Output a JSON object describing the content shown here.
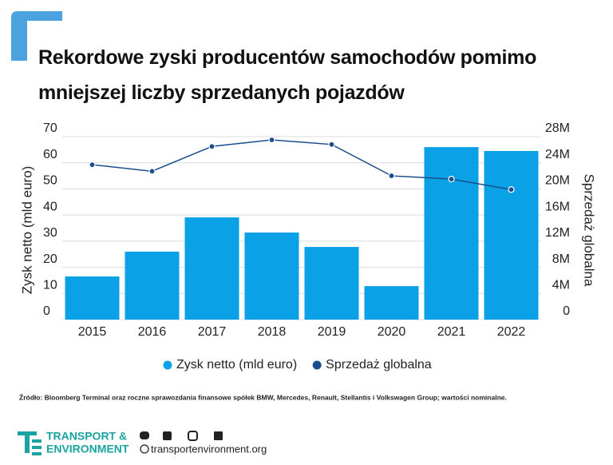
{
  "chart_data": {
    "type": "bar",
    "title": "Rekordowe zyski producentów samochodów pomimo mniejszej liczby sprzedanych pojazdów",
    "y_label": "Zysk netto (mld euro)",
    "y2_label": "Sprzedaż globalna",
    "categories": [
      "2015",
      "2016",
      "2017",
      "2018",
      "2019",
      "2020",
      "2021",
      "2022"
    ],
    "series": [
      {
        "name": "Zysk netto (mld euro)",
        "type": "bar",
        "color": "#0ba1e6",
        "values": [
          16.5,
          26,
          39.1,
          33.3,
          27.8,
          12.8,
          66,
          64.5
        ]
      },
      {
        "name": "Sprzedaż globalna",
        "type": "line",
        "axis": "y2",
        "color": "#1b4d8c",
        "values": [
          23700000,
          22700000,
          26500000,
          27500000,
          26800000,
          22000000,
          21500000,
          19900000
        ]
      }
    ],
    "ylim": [
      0,
      70
    ],
    "yticks": [
      0,
      10,
      20,
      30,
      40,
      50,
      60,
      70
    ],
    "y2lim": [
      0,
      28000000
    ],
    "y2ticks": [
      0,
      {
        "value": 4000000,
        "label": "4M"
      },
      {
        "value": 8000000,
        "label": "8M"
      },
      {
        "value": 12000000,
        "label": "12M"
      },
      {
        "value": 16000000,
        "label": "16M"
      },
      {
        "value": 20000000,
        "label": "20M"
      },
      {
        "value": 24000000,
        "label": "24M"
      },
      {
        "value": 28000000,
        "label": "28M"
      }
    ],
    "grid": true,
    "legend": "bottom",
    "source": "Źródło: Bloomberg Terminal oraz roczne sprawozdania finansowe spółek BMW, Mercedes, Renault, Stellantis i Volkswagen Group; wartości nominalne."
  },
  "footer": {
    "brand_line1": "TRANSPORT &",
    "brand_line2": "ENVIRONMENT",
    "url": "transportenvironment.org"
  }
}
